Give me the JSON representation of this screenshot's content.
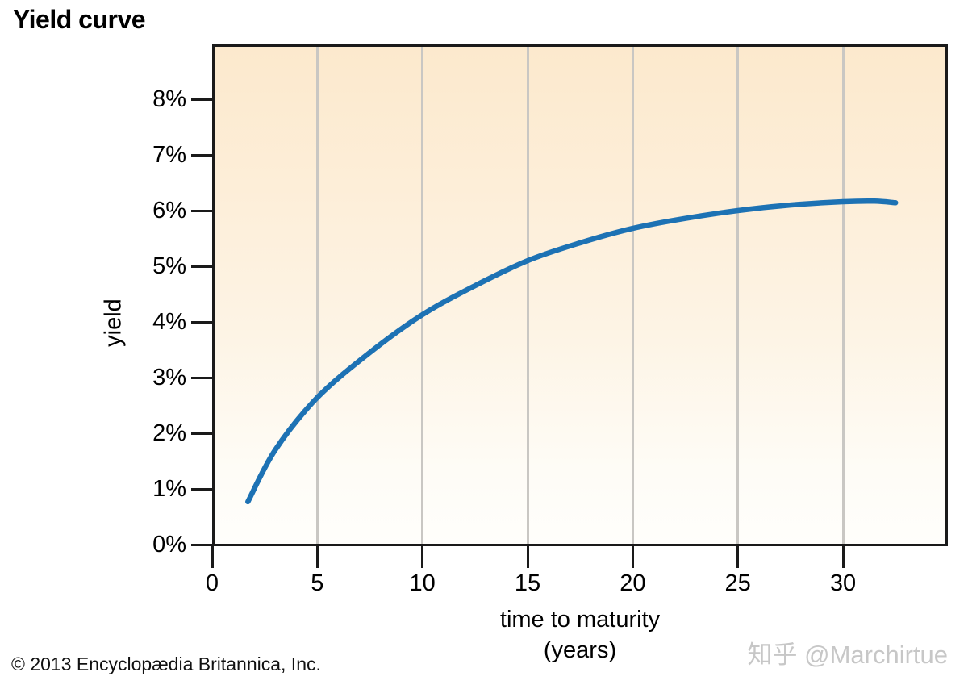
{
  "title": "Yield curve",
  "credit": "© 2013 Encyclopædia Britannica, Inc.",
  "watermark": "知乎 @Marchirtue",
  "colors": {
    "curve": "#1d72b4",
    "plot_bg_top": "#fce9cd",
    "plot_bg_bottom": "#fffefb",
    "gridline": "#c9c7c3",
    "axis": "#1a1a1a",
    "watermark": "#c7c7c7"
  },
  "chart_data": {
    "type": "line",
    "title": "Yield curve",
    "xlabel": "time to maturity (years)",
    "xlabel_lines": [
      "time to maturity",
      "(years)"
    ],
    "ylabel": "yield",
    "xlim": [
      0,
      35
    ],
    "ylim": [
      0,
      9
    ],
    "xticks": [
      0,
      5,
      10,
      15,
      20,
      25,
      30
    ],
    "xtick_labels": [
      "0",
      "5",
      "10",
      "15",
      "20",
      "25",
      "30"
    ],
    "yticks": [
      0,
      1,
      2,
      3,
      4,
      5,
      6,
      7,
      8
    ],
    "ytick_labels": [
      "0%",
      "1%",
      "2%",
      "3%",
      "4%",
      "5%",
      "6%",
      "7%",
      "8%"
    ],
    "grid": "vertical gridlines at x = 5,10,15,20,25,30",
    "legend_position": "none",
    "series": [
      {
        "name": "yield curve",
        "x": [
          1.7,
          3,
          5,
          7.5,
          10,
          12.5,
          15,
          17.5,
          20,
          22.5,
          25,
          27.5,
          30,
          31.5,
          32.5
        ],
        "y": [
          0.77,
          1.7,
          2.64,
          3.45,
          4.13,
          4.65,
          5.1,
          5.42,
          5.68,
          5.86,
          6.0,
          6.1,
          6.16,
          6.17,
          6.14
        ]
      }
    ]
  }
}
